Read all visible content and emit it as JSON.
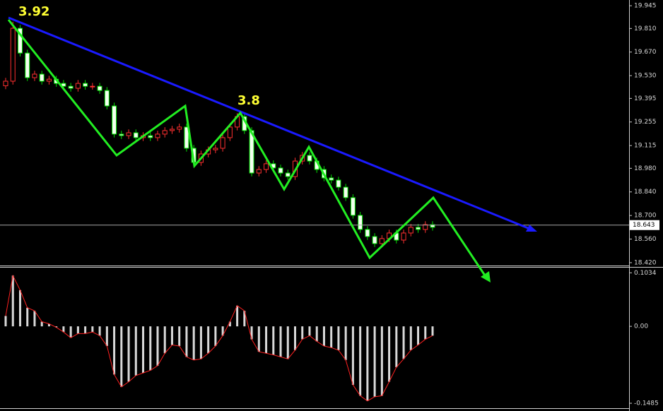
{
  "chart_data": [
    {
      "type": "candlestick",
      "open": [
        19.47,
        19.497,
        19.811,
        19.664,
        19.518,
        19.539,
        19.497,
        19.509,
        19.484,
        19.467,
        19.455,
        19.484,
        19.467,
        19.467,
        19.442,
        19.35,
        19.183,
        19.174,
        19.191,
        19.162,
        19.174,
        19.162,
        19.183,
        19.204,
        19.212,
        19.225,
        19.099,
        19.015,
        19.065,
        19.09,
        19.099,
        19.162,
        19.225,
        19.287,
        19.204,
        18.952,
        18.973,
        19.007,
        18.982,
        18.952,
        18.931,
        19.023,
        19.057,
        19.023,
        18.973,
        18.923,
        18.91,
        18.868,
        18.806,
        18.701,
        18.617,
        18.575,
        18.533,
        18.563,
        18.596,
        18.554,
        18.596,
        18.63,
        18.617,
        18.646
      ],
      "high": [
        19.517,
        19.85,
        19.831,
        19.684,
        19.559,
        19.559,
        19.529,
        19.529,
        19.504,
        19.487,
        19.504,
        19.504,
        19.487,
        19.487,
        19.462,
        19.37,
        19.203,
        19.211,
        19.211,
        19.194,
        19.194,
        19.203,
        19.224,
        19.232,
        19.245,
        19.245,
        19.119,
        19.085,
        19.11,
        19.119,
        19.182,
        19.245,
        19.307,
        19.307,
        19.224,
        18.993,
        19.027,
        19.027,
        19.002,
        18.972,
        19.043,
        19.077,
        19.077,
        19.043,
        18.993,
        18.943,
        18.93,
        18.888,
        18.826,
        18.721,
        18.637,
        18.595,
        18.583,
        18.616,
        18.616,
        18.616,
        18.65,
        18.65,
        18.666,
        18.666
      ],
      "low": [
        19.45,
        19.477,
        19.644,
        19.498,
        19.498,
        19.477,
        19.477,
        19.464,
        19.447,
        19.435,
        19.435,
        19.447,
        19.447,
        19.422,
        19.33,
        19.163,
        19.154,
        19.154,
        19.142,
        19.142,
        19.142,
        19.142,
        19.163,
        19.184,
        19.192,
        19.079,
        18.995,
        18.995,
        19.045,
        19.07,
        19.079,
        19.142,
        19.205,
        19.184,
        18.932,
        18.932,
        18.953,
        18.962,
        18.932,
        18.911,
        18.911,
        19.003,
        19.003,
        18.953,
        18.903,
        18.89,
        18.848,
        18.786,
        18.681,
        18.597,
        18.555,
        18.513,
        18.513,
        18.543,
        18.534,
        18.534,
        18.576,
        18.597,
        18.597,
        18.61
      ],
      "close": [
        19.497,
        19.811,
        19.664,
        19.518,
        19.539,
        19.497,
        19.509,
        19.484,
        19.467,
        19.455,
        19.484,
        19.467,
        19.467,
        19.442,
        19.35,
        19.183,
        19.174,
        19.191,
        19.162,
        19.174,
        19.162,
        19.183,
        19.204,
        19.212,
        19.225,
        19.099,
        19.015,
        19.065,
        19.09,
        19.099,
        19.162,
        19.225,
        19.287,
        19.204,
        18.952,
        18.973,
        19.007,
        18.982,
        18.952,
        18.931,
        19.023,
        19.057,
        19.023,
        18.973,
        18.923,
        18.91,
        18.868,
        18.806,
        18.701,
        18.617,
        18.575,
        18.533,
        18.563,
        18.596,
        18.554,
        18.596,
        18.63,
        18.617,
        18.646,
        18.63
      ],
      "up_color": "#ff3030",
      "down_color": "#00dd00",
      "ylim": [
        18.403,
        19.979
      ],
      "yticks": [
        19.945,
        {
          "value": 19.81,
          "label": "19.810"
        },
        {
          "value": 19.67,
          "label": "19.670"
        },
        {
          "value": 19.53,
          "label": "19.530"
        },
        19.395,
        19.255,
        19.115,
        {
          "value": 18.98,
          "label": "18.980"
        },
        {
          "value": 18.84,
          "label": "18.840"
        },
        {
          "value": 18.7,
          "label": "18.700"
        },
        {
          "value": 18.56,
          "label": "18.560"
        },
        {
          "value": 18.42,
          "label": "18.420"
        }
      ],
      "current_price": 18.643,
      "annotations": [
        "3.92",
        "3.8"
      ]
    },
    {
      "type": "histogram",
      "values": [
        0.02,
        0.098,
        0.07,
        0.036,
        0.03,
        0.009,
        0.005,
        -0.002,
        -0.011,
        -0.022,
        -0.014,
        -0.014,
        -0.011,
        -0.018,
        -0.038,
        -0.093,
        -0.117,
        -0.107,
        -0.095,
        -0.09,
        -0.085,
        -0.076,
        -0.052,
        -0.036,
        -0.038,
        -0.059,
        -0.065,
        -0.063,
        -0.052,
        -0.038,
        -0.018,
        0.009,
        0.04,
        0.03,
        -0.025,
        -0.049,
        -0.052,
        -0.055,
        -0.059,
        -0.063,
        -0.046,
        -0.025,
        -0.018,
        -0.029,
        -0.038,
        -0.041,
        -0.046,
        -0.065,
        -0.113,
        -0.134,
        -0.144,
        -0.136,
        -0.134,
        -0.107,
        -0.079,
        -0.063,
        -0.046,
        -0.036,
        -0.025,
        -0.018
      ],
      "color": "#d8d8d8",
      "line_color": "#ff2020",
      "ylim": [
        -0.158,
        0.112
      ],
      "yticks": [
        0.1034,
        {
          "value": 0,
          "label": "0.00"
        },
        -0.1485
      ]
    }
  ]
}
